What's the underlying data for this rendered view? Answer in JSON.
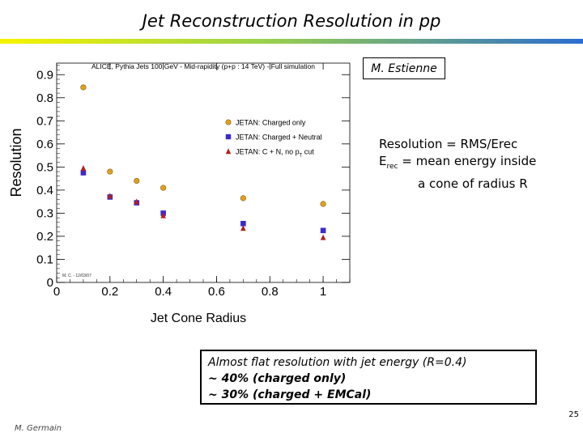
{
  "slide": {
    "title": "Jet Reconstruction Resolution in pp",
    "author_box": "M. Estienne",
    "note": {
      "line1": "Resolution = RMS/Erec",
      "line2_prefix": "E",
      "line2_sub": "rec",
      "line2_suffix": " = mean energy inside",
      "line3": "a cone of radius R"
    },
    "summary": {
      "line1": "Almost flat resolution with jet energy (R=0.4)",
      "line2": "~ 40% (charged only)",
      "line3": "~ 30% (charged + EMCal)"
    },
    "page_number": "25",
    "footer": "M. Germain"
  },
  "chart_data": {
    "type": "scatter",
    "title": "ALICE, Pythia Jets 100 GeV - Mid-rapidity (p+p : 14 TeV) - Full simulation",
    "xlabel": "Jet Cone Radius",
    "ylabel": "Resolution",
    "xlim": [
      0,
      1.1
    ],
    "ylim": [
      0,
      0.95
    ],
    "x_ticks": [
      0,
      0.2,
      0.4,
      0.6,
      0.8,
      1
    ],
    "x_tick_labels": [
      "0",
      "0.2",
      "0.4",
      "0.6",
      "0.8",
      "1"
    ],
    "y_ticks": [
      0,
      0.1,
      0.2,
      0.3,
      0.4,
      0.5,
      0.6,
      0.7,
      0.8,
      0.9
    ],
    "y_tick_labels": [
      "0",
      "0.1",
      "0.2",
      "0.3",
      "0.4",
      "0.5",
      "0.6",
      "0.7",
      "0.8",
      "0.9"
    ],
    "stamp": "M. C. - 12/03/07",
    "legend_position": "top-right",
    "series": [
      {
        "name": "JETAN: Charged only",
        "marker": "circle",
        "color": "#e0a020",
        "x": [
          0.1,
          0.2,
          0.3,
          0.4,
          0.7,
          1.0
        ],
        "y": [
          0.845,
          0.48,
          0.44,
          0.41,
          0.365,
          0.34
        ]
      },
      {
        "name": "JETAN: Charged + Neutral",
        "marker": "square",
        "color": "#3a2ad0",
        "x": [
          0.1,
          0.2,
          0.3,
          0.4,
          0.7,
          1.0
        ],
        "y": [
          0.475,
          0.37,
          0.345,
          0.3,
          0.255,
          0.225
        ]
      },
      {
        "name_parts": [
          "JETAN: C + N, no p",
          "T",
          " cut"
        ],
        "marker": "triangle",
        "color": "#b02020",
        "x": [
          0.1,
          0.2,
          0.3,
          0.4,
          0.7,
          1.0
        ],
        "y": [
          0.495,
          0.375,
          0.35,
          0.29,
          0.235,
          0.195
        ]
      }
    ]
  }
}
